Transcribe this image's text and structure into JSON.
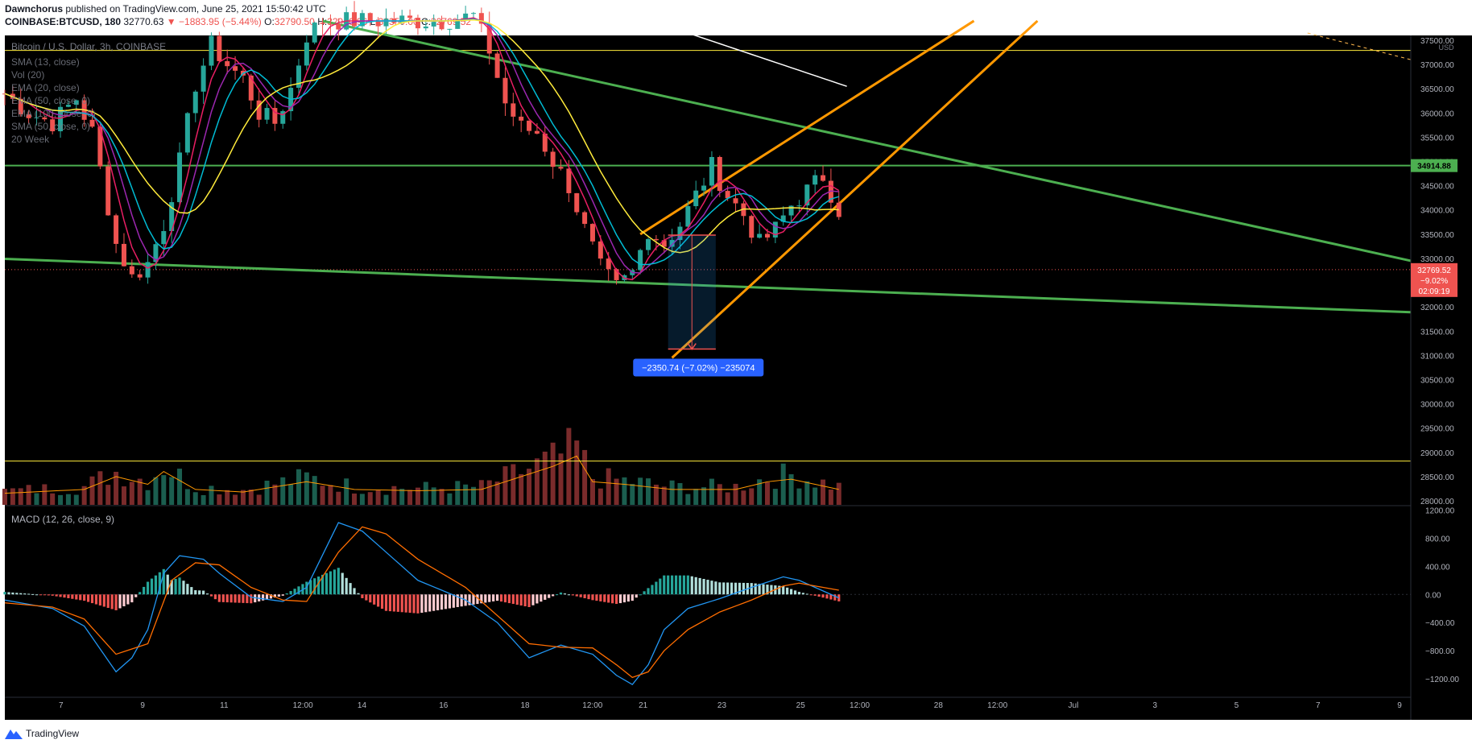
{
  "header": {
    "publisher": "Dawnchorus",
    "published_text": "published on TradingView.com, June 25, 2021 15:50:42 UTC",
    "symbol": "COINBASE:BTCUSD, 180",
    "last": "32770.63",
    "change": "−1883.95 (−5.44%)",
    "o_label": "O:",
    "o": "32790.50",
    "h_label": "H:",
    "h": "32946.96",
    "l_label": "L:",
    "l": "32350.00",
    "c_label": "C:",
    "c": "32769.52"
  },
  "legend": {
    "title": "Bitcoin / U.S. Dollar, 3h, COINBASE",
    "items": [
      "SMA (13, close)",
      "Vol (20)",
      "EMA (20, close)",
      "EMA (50, close, 0)",
      "EMA (100, close, 0)",
      "SMA (50, close, 0)",
      "20 Week"
    ]
  },
  "measure_label": "−2350.74 (−7.02%) −235074",
  "macd_title": "MACD (12, 26, close, 9)",
  "footer": {
    "brand": "TradingView"
  },
  "colors": {
    "background": "#000000",
    "up": "#26a69a",
    "down": "#ef5350",
    "green_line": "#4caf50",
    "orange_line": "#ff9800",
    "yellow": "#ffeb3b",
    "macd_line": "#2196f3",
    "signal_line": "#ff6d00"
  },
  "chart_data": {
    "type": "candlestick",
    "title": "",
    "x_ticks": [
      "7",
      "9",
      "11",
      "12:00",
      "14",
      "16",
      "18",
      "12:00",
      "21",
      "23",
      "25",
      "12:00",
      "28",
      "12:00",
      "Jul",
      "3",
      "5",
      "7",
      "9"
    ],
    "price_axis": {
      "unit": "USD",
      "ticks": [
        "37500.00",
        "37000.00",
        "36500.00",
        "36000.00",
        "35500.00",
        "35000.00",
        "34500.00",
        "34000.00",
        "33500.00",
        "33000.00",
        "32500.00",
        "32000.00",
        "31500.00",
        "31000.00",
        "30500.00",
        "30000.00",
        "29500.00",
        "29000.00",
        "28500.00",
        "28000.00"
      ],
      "range": [
        27900,
        37600
      ]
    },
    "price_labels": {
      "resistance": "34914.88",
      "current": "32769.52",
      "current_change": "−9.02%",
      "countdown": "02:09:19"
    },
    "horizontal_levels": [
      34914.88,
      37290,
      28820
    ],
    "current_price": 32769.52,
    "macd_axis": {
      "ticks": [
        "1200.00",
        "800.00",
        "400.00",
        "0.00",
        "−400.00",
        "−800.00",
        "−1200.00"
      ],
      "range": [
        -1450,
        1250
      ]
    },
    "price_path": [
      [
        0,
        36400
      ],
      [
        3,
        36000
      ],
      [
        6,
        35800
      ],
      [
        9,
        36300
      ],
      [
        11,
        35600
      ],
      [
        14,
        33300
      ],
      [
        16,
        32600
      ],
      [
        18,
        32900
      ],
      [
        20,
        33700
      ],
      [
        22,
        35000
      ],
      [
        24,
        36600
      ],
      [
        26,
        37400
      ],
      [
        28,
        37000
      ],
      [
        30,
        36700
      ],
      [
        32,
        36000
      ],
      [
        34,
        35800
      ],
      [
        36,
        36500
      ],
      [
        38,
        37600
      ],
      [
        40,
        37900
      ],
      [
        44,
        37900
      ],
      [
        49,
        37900
      ],
      [
        55,
        37900
      ],
      [
        59,
        38000
      ],
      [
        61,
        37300
      ],
      [
        63,
        36200
      ],
      [
        65,
        35700
      ],
      [
        67,
        35600
      ],
      [
        69,
        35000
      ],
      [
        71,
        34500
      ],
      [
        73,
        33600
      ],
      [
        75,
        32800
      ],
      [
        77,
        32400
      ],
      [
        79,
        32700
      ],
      [
        81,
        33600
      ],
      [
        83,
        33300
      ],
      [
        85,
        33700
      ],
      [
        87,
        34300
      ],
      [
        89,
        34900
      ],
      [
        91,
        34300
      ],
      [
        93,
        33900
      ],
      [
        95,
        33300
      ],
      [
        97,
        33600
      ],
      [
        99,
        34100
      ],
      [
        101,
        34400
      ],
      [
        103,
        34700
      ],
      [
        105,
        34000
      ]
    ],
    "volume_scale": [
      0,
      2.0
    ],
    "volume_path": [
      [
        0,
        0.45
      ],
      [
        10,
        0.6
      ],
      [
        14,
        1.1
      ],
      [
        18,
        0.8
      ],
      [
        20,
        1.3
      ],
      [
        24,
        0.6
      ],
      [
        30,
        0.5
      ],
      [
        38,
        0.9
      ],
      [
        44,
        0.6
      ],
      [
        52,
        0.55
      ],
      [
        60,
        0.6
      ],
      [
        66,
        1.2
      ],
      [
        69,
        1.5
      ],
      [
        72,
        1.9
      ],
      [
        74,
        0.9
      ],
      [
        78,
        0.8
      ],
      [
        84,
        0.6
      ],
      [
        92,
        0.6
      ],
      [
        96,
        0.9
      ],
      [
        99,
        1.0
      ],
      [
        105,
        0.6
      ]
    ],
    "macd_path": [
      [
        0,
        -80
      ],
      [
        6,
        -200
      ],
      [
        10,
        -450
      ],
      [
        14,
        -1100
      ],
      [
        16,
        -900
      ],
      [
        18,
        -500
      ],
      [
        20,
        300
      ],
      [
        22,
        550
      ],
      [
        25,
        500
      ],
      [
        27,
        300
      ],
      [
        31,
        -40
      ],
      [
        35,
        -100
      ],
      [
        38,
        100
      ],
      [
        42,
        1020
      ],
      [
        45,
        900
      ],
      [
        48,
        600
      ],
      [
        52,
        200
      ],
      [
        58,
        -80
      ],
      [
        62,
        -400
      ],
      [
        66,
        -900
      ],
      [
        70,
        -720
      ],
      [
        74,
        -850
      ],
      [
        77,
        -1150
      ],
      [
        79,
        -1280
      ],
      [
        81,
        -1000
      ],
      [
        83,
        -500
      ],
      [
        86,
        -200
      ],
      [
        90,
        -60
      ],
      [
        94,
        100
      ],
      [
        98,
        250
      ],
      [
        100,
        200
      ],
      [
        105,
        -50
      ]
    ],
    "signal_path": [
      [
        0,
        -120
      ],
      [
        6,
        -180
      ],
      [
        10,
        -350
      ],
      [
        14,
        -850
      ],
      [
        18,
        -700
      ],
      [
        21,
        200
      ],
      [
        24,
        450
      ],
      [
        27,
        420
      ],
      [
        31,
        100
      ],
      [
        35,
        -80
      ],
      [
        38,
        -100
      ],
      [
        42,
        600
      ],
      [
        45,
        960
      ],
      [
        48,
        860
      ],
      [
        52,
        500
      ],
      [
        58,
        100
      ],
      [
        62,
        -300
      ],
      [
        66,
        -700
      ],
      [
        70,
        -750
      ],
      [
        74,
        -760
      ],
      [
        77,
        -1000
      ],
      [
        79,
        -1180
      ],
      [
        81,
        -1100
      ],
      [
        83,
        -800
      ],
      [
        86,
        -500
      ],
      [
        90,
        -250
      ],
      [
        94,
        -80
      ],
      [
        98,
        120
      ],
      [
        100,
        160
      ],
      [
        105,
        60
      ]
    ],
    "measure": {
      "from_price": 33480,
      "to_price": 31130,
      "change": -2350.74,
      "change_pct": -7.02
    }
  }
}
